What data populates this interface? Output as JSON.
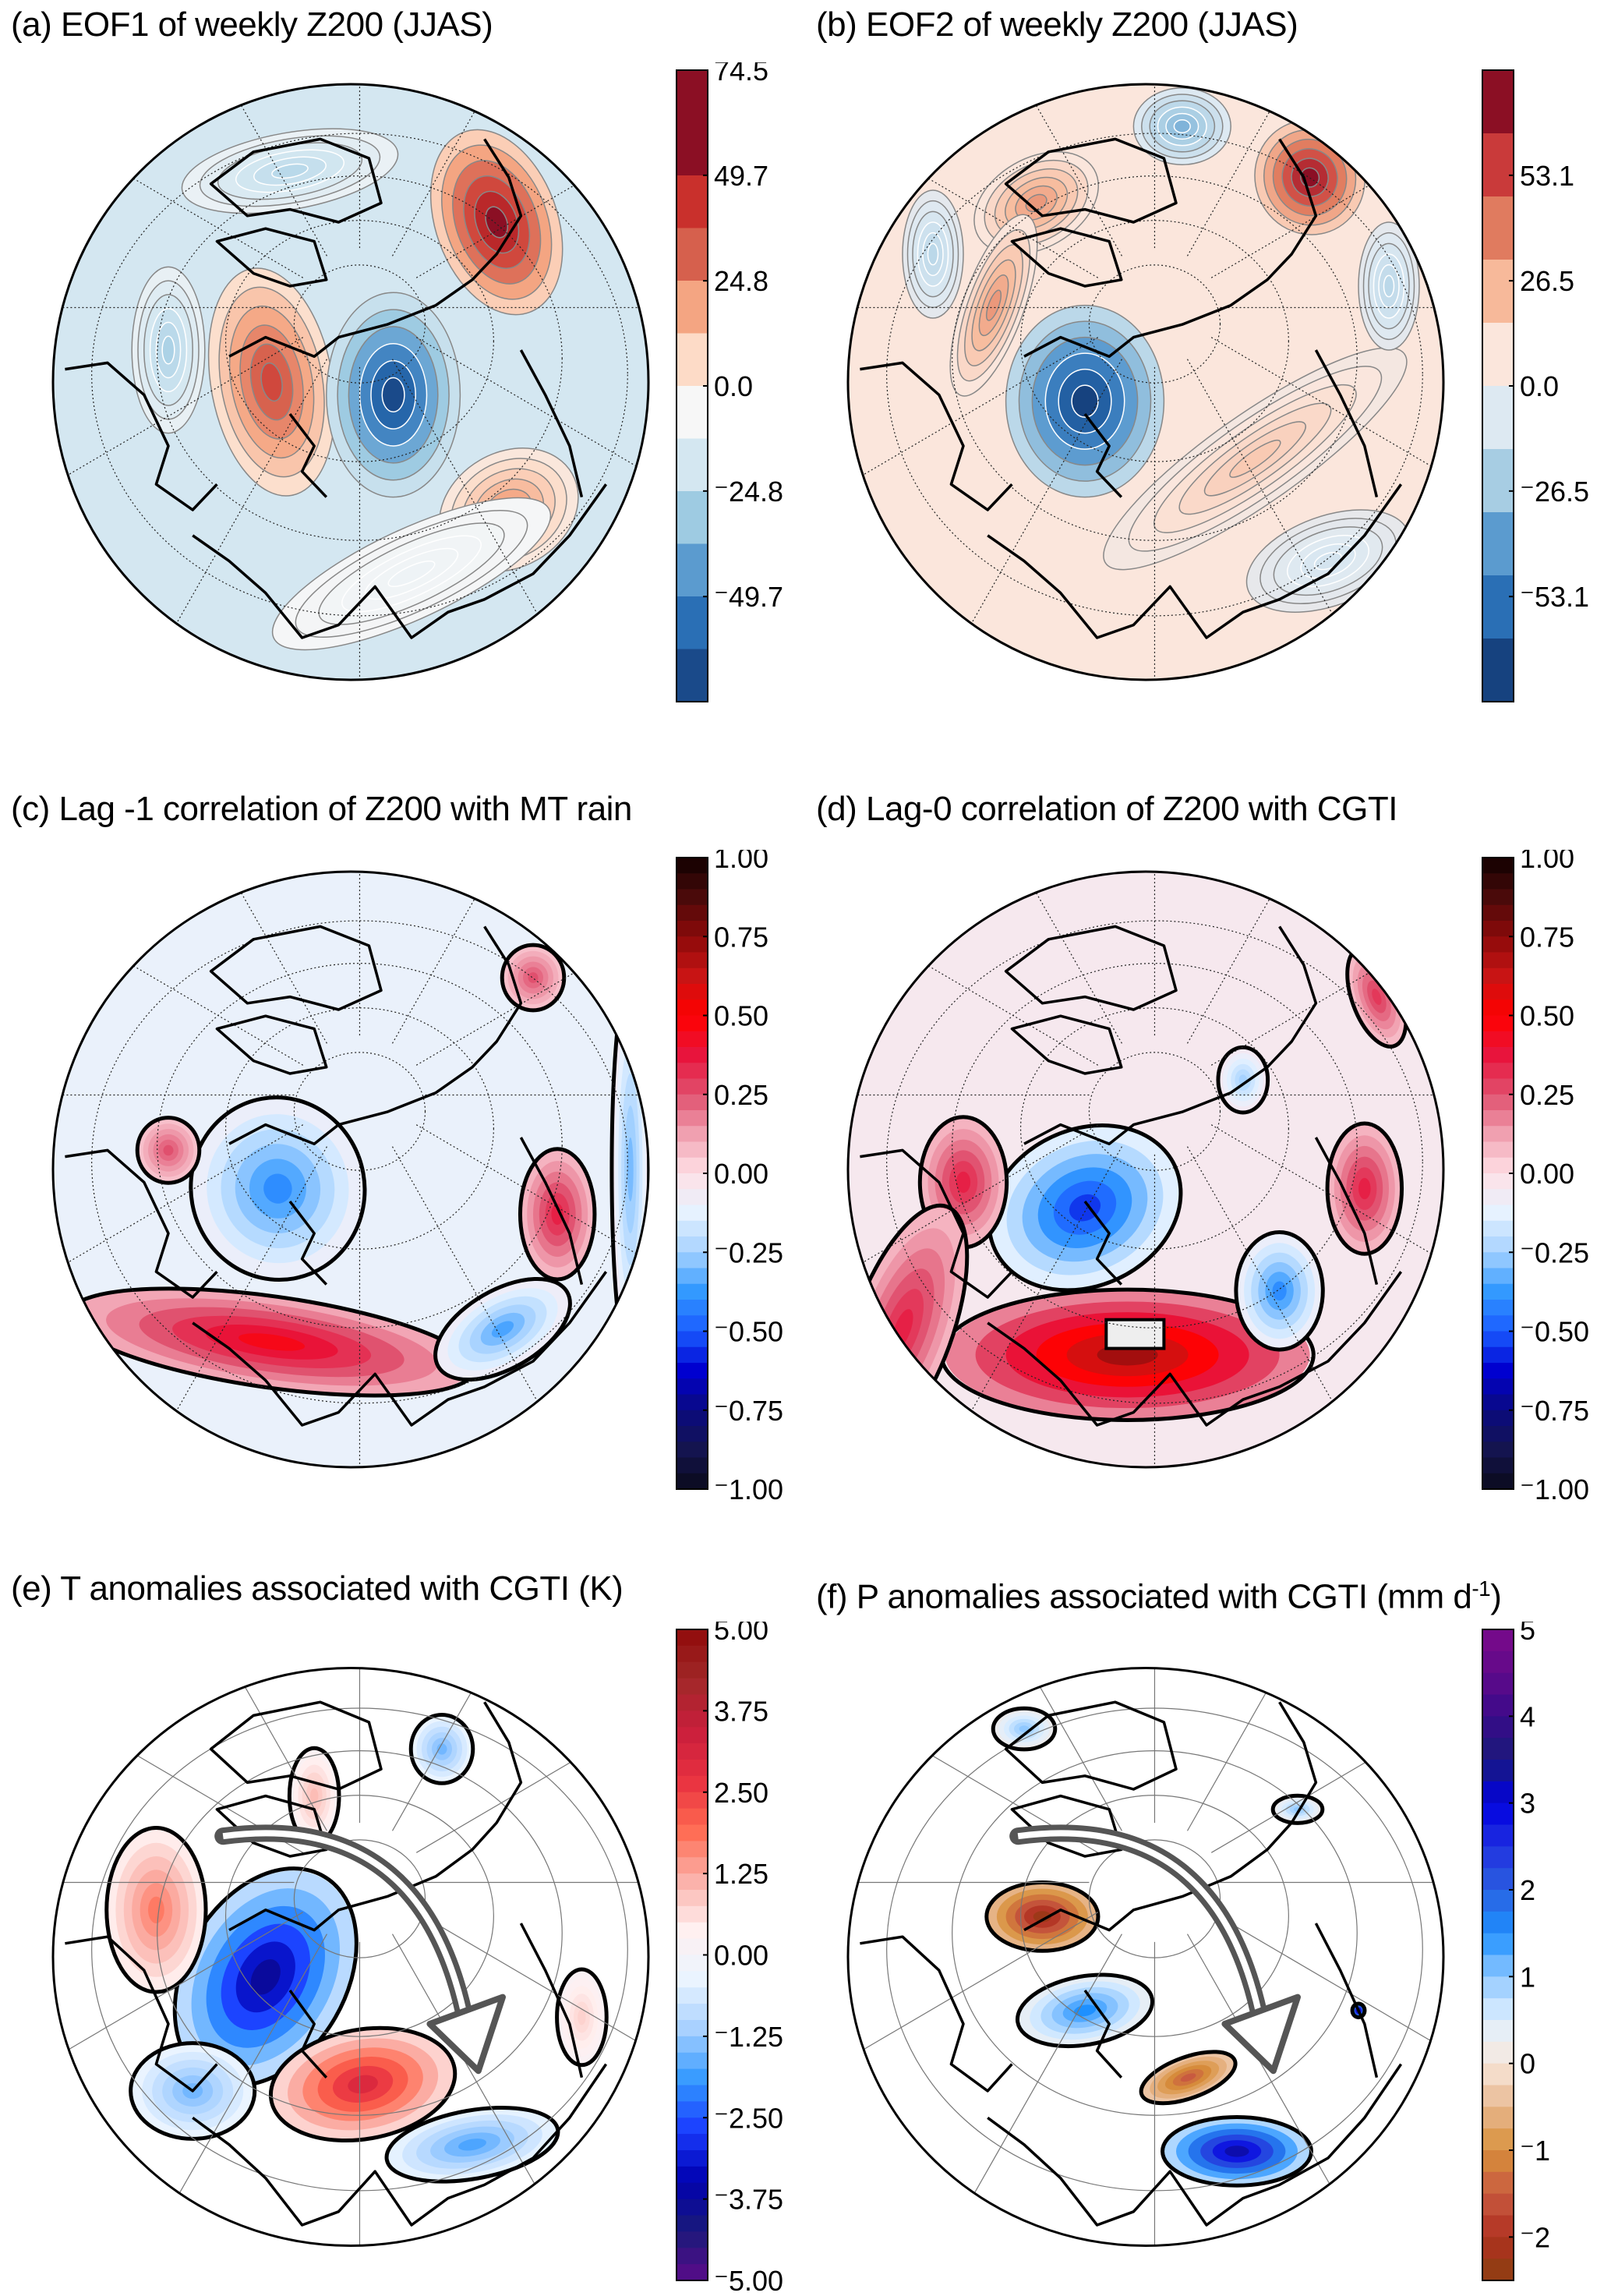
{
  "chart_data": [
    {
      "id": "a",
      "type": "heatmap",
      "subtype": "polar-stereographic contour map",
      "title": "(a) EOF1 of weekly Z200 (JJAS)",
      "colorbar": {
        "ticks": [
          "74.5",
          "49.7",
          "24.8",
          "0.0",
          "-24.8",
          "-49.7"
        ],
        "range": [
          -74.5,
          74.5
        ],
        "levels": 12,
        "colors": [
          "#1a4a8a",
          "#2a6fb5",
          "#5b9bcf",
          "#9ecbe2",
          "#d4e7f1",
          "#f7f7f7",
          "#fddbc7",
          "#f4a582",
          "#d6604d",
          "#c9302c",
          "#8b0f24",
          "#8b0f24"
        ]
      },
      "features": [
        {
          "kind": "positive-anomaly",
          "region": "Western Europe / North Atlantic",
          "peak_level": 49.7
        },
        {
          "kind": "negative-anomaly",
          "region": "West Siberia / Caspian",
          "peak_level": -74.5
        },
        {
          "kind": "positive-anomaly",
          "region": "Alaska / Bering",
          "peak_level": 74.5
        },
        {
          "kind": "positive-anomaly",
          "region": "East Asia / North Pacific",
          "peak_level": 24.8
        },
        {
          "kind": "negative-anomaly",
          "region": "Canada / Labrador",
          "peak_level": -24.8
        }
      ]
    },
    {
      "id": "b",
      "type": "heatmap",
      "subtype": "polar-stereographic contour map",
      "title": "(b) EOF2 of weekly Z200 (JJAS)",
      "colorbar": {
        "ticks": [
          "53.1",
          "26.5",
          "0.0",
          "-26.5",
          "-53.1"
        ],
        "range": [
          -79.6,
          79.6
        ],
        "levels": 10,
        "colors": [
          "#16427f",
          "#2a6fb5",
          "#5b9bcf",
          "#a7cde3",
          "#dde9f2",
          "#fbe6dc",
          "#f7b99a",
          "#e07b5f",
          "#c93a3a",
          "#8b0f24"
        ]
      },
      "features": [
        {
          "kind": "negative-anomaly",
          "region": "Eastern Europe / Scandinavia",
          "peak_level": -79.6
        },
        {
          "kind": "positive-anomaly",
          "region": "Bering Sea / Alaska",
          "peak_level": 79.6
        },
        {
          "kind": "positive-anomaly",
          "region": "North Atlantic / Greenland",
          "peak_level": 26.5
        },
        {
          "kind": "positive-anomaly",
          "region": "Central Asia to Japan band",
          "peak_level": 26.5
        },
        {
          "kind": "negative-anomaly",
          "region": "Hudson Bay",
          "peak_level": -26.5
        }
      ]
    },
    {
      "id": "c",
      "type": "heatmap",
      "subtype": "polar-stereographic correlation map",
      "title": "(c) Lag -1 correlation of Z200 with MT rain",
      "colorbar": {
        "ticks": [
          "1.00",
          "0.75",
          "0.50",
          "0.25",
          "0.00",
          "-0.25",
          "-0.50",
          "-0.75",
          "-1.00"
        ],
        "range": [
          -1.0,
          1.0
        ],
        "levels": 40
      },
      "features": [
        {
          "kind": "positive-correlation",
          "region": "North Africa / Middle East / Central Asia belt",
          "peak_value": 0.4
        },
        {
          "kind": "negative-correlation",
          "region": "Eastern Europe / Caspian",
          "peak_value": -0.3
        },
        {
          "kind": "positive-correlation",
          "region": "East Asia / Japan",
          "peak_value": 0.35
        },
        {
          "kind": "positive-correlation",
          "region": "NW Europe",
          "peak_value": 0.2
        },
        {
          "kind": "negative-correlation",
          "region": "South China Sea / Indochina",
          "peak_value": -0.3
        }
      ]
    },
    {
      "id": "d",
      "type": "heatmap",
      "subtype": "polar-stereographic correlation map",
      "title": "(d) Lag-0 correlation of Z200 with CGTI",
      "colorbar": {
        "ticks": [
          "1.00",
          "0.75",
          "0.50",
          "0.25",
          "0.00",
          "-0.25",
          "-0.50",
          "-0.75",
          "-1.00"
        ],
        "range": [
          -1.0,
          1.0
        ],
        "levels": 40
      },
      "features": [
        {
          "kind": "positive-correlation",
          "region": "Central Asia (index box)",
          "peak_value": 1.0
        },
        {
          "kind": "negative-correlation",
          "region": "Eastern Europe / Western Russia",
          "peak_value": -0.5
        },
        {
          "kind": "negative-correlation",
          "region": "East Asia",
          "peak_value": -0.35
        },
        {
          "kind": "positive-correlation",
          "region": "Western Europe",
          "peak_value": 0.35
        },
        {
          "kind": "positive-correlation",
          "region": "Japan / NW Pacific",
          "peak_value": 0.35
        }
      ]
    },
    {
      "id": "e",
      "type": "heatmap",
      "subtype": "polar-stereographic regression map",
      "title": "(e) T anomalies associated with CGTI (K)",
      "colorbar": {
        "ticks": [
          "5.00",
          "3.75",
          "2.50",
          "1.25",
          "0.00",
          "-1.25",
          "-2.50",
          "-3.75",
          "-5.00"
        ],
        "range": [
          -5.0,
          5.0
        ],
        "levels": 40
      },
      "annotation": "wave-train arrow from North Atlantic to East Asia",
      "features": [
        {
          "kind": "warm-anomaly",
          "region": "Central Asia / Tibet",
          "peak_value": 2.5
        },
        {
          "kind": "cold-anomaly",
          "region": "Eastern Europe / Russia",
          "peak_value": -3.0
        },
        {
          "kind": "warm-anomaly",
          "region": "Western Europe",
          "peak_value": 1.5
        },
        {
          "kind": "cold-anomaly",
          "region": "East Asia",
          "peak_value": -1.5
        }
      ]
    },
    {
      "id": "f",
      "type": "heatmap",
      "subtype": "polar-stereographic regression map",
      "title": "(f) P anomalies associated with CGTI (mm d",
      "title_superscript": "-1",
      "title_close": ")",
      "colorbar": {
        "ticks": [
          "5",
          "4",
          "3",
          "2",
          "1",
          "0",
          "-1",
          "-2"
        ],
        "range": [
          -2.5,
          5.0
        ],
        "levels": 30
      },
      "annotation": "wave-train arrow from North Atlantic to East Asia",
      "features": [
        {
          "kind": "wet-anomaly",
          "region": "Northern India / Bangladesh",
          "peak_value": 3.5
        },
        {
          "kind": "wet-anomaly",
          "region": "Eastern Europe / Russia",
          "peak_value": 1.5
        },
        {
          "kind": "dry-anomaly",
          "region": "Western Europe",
          "peak_value": -1.5
        },
        {
          "kind": "dry-anomaly",
          "region": "Tibet / Central Asia",
          "peak_value": -1.0
        }
      ]
    }
  ]
}
